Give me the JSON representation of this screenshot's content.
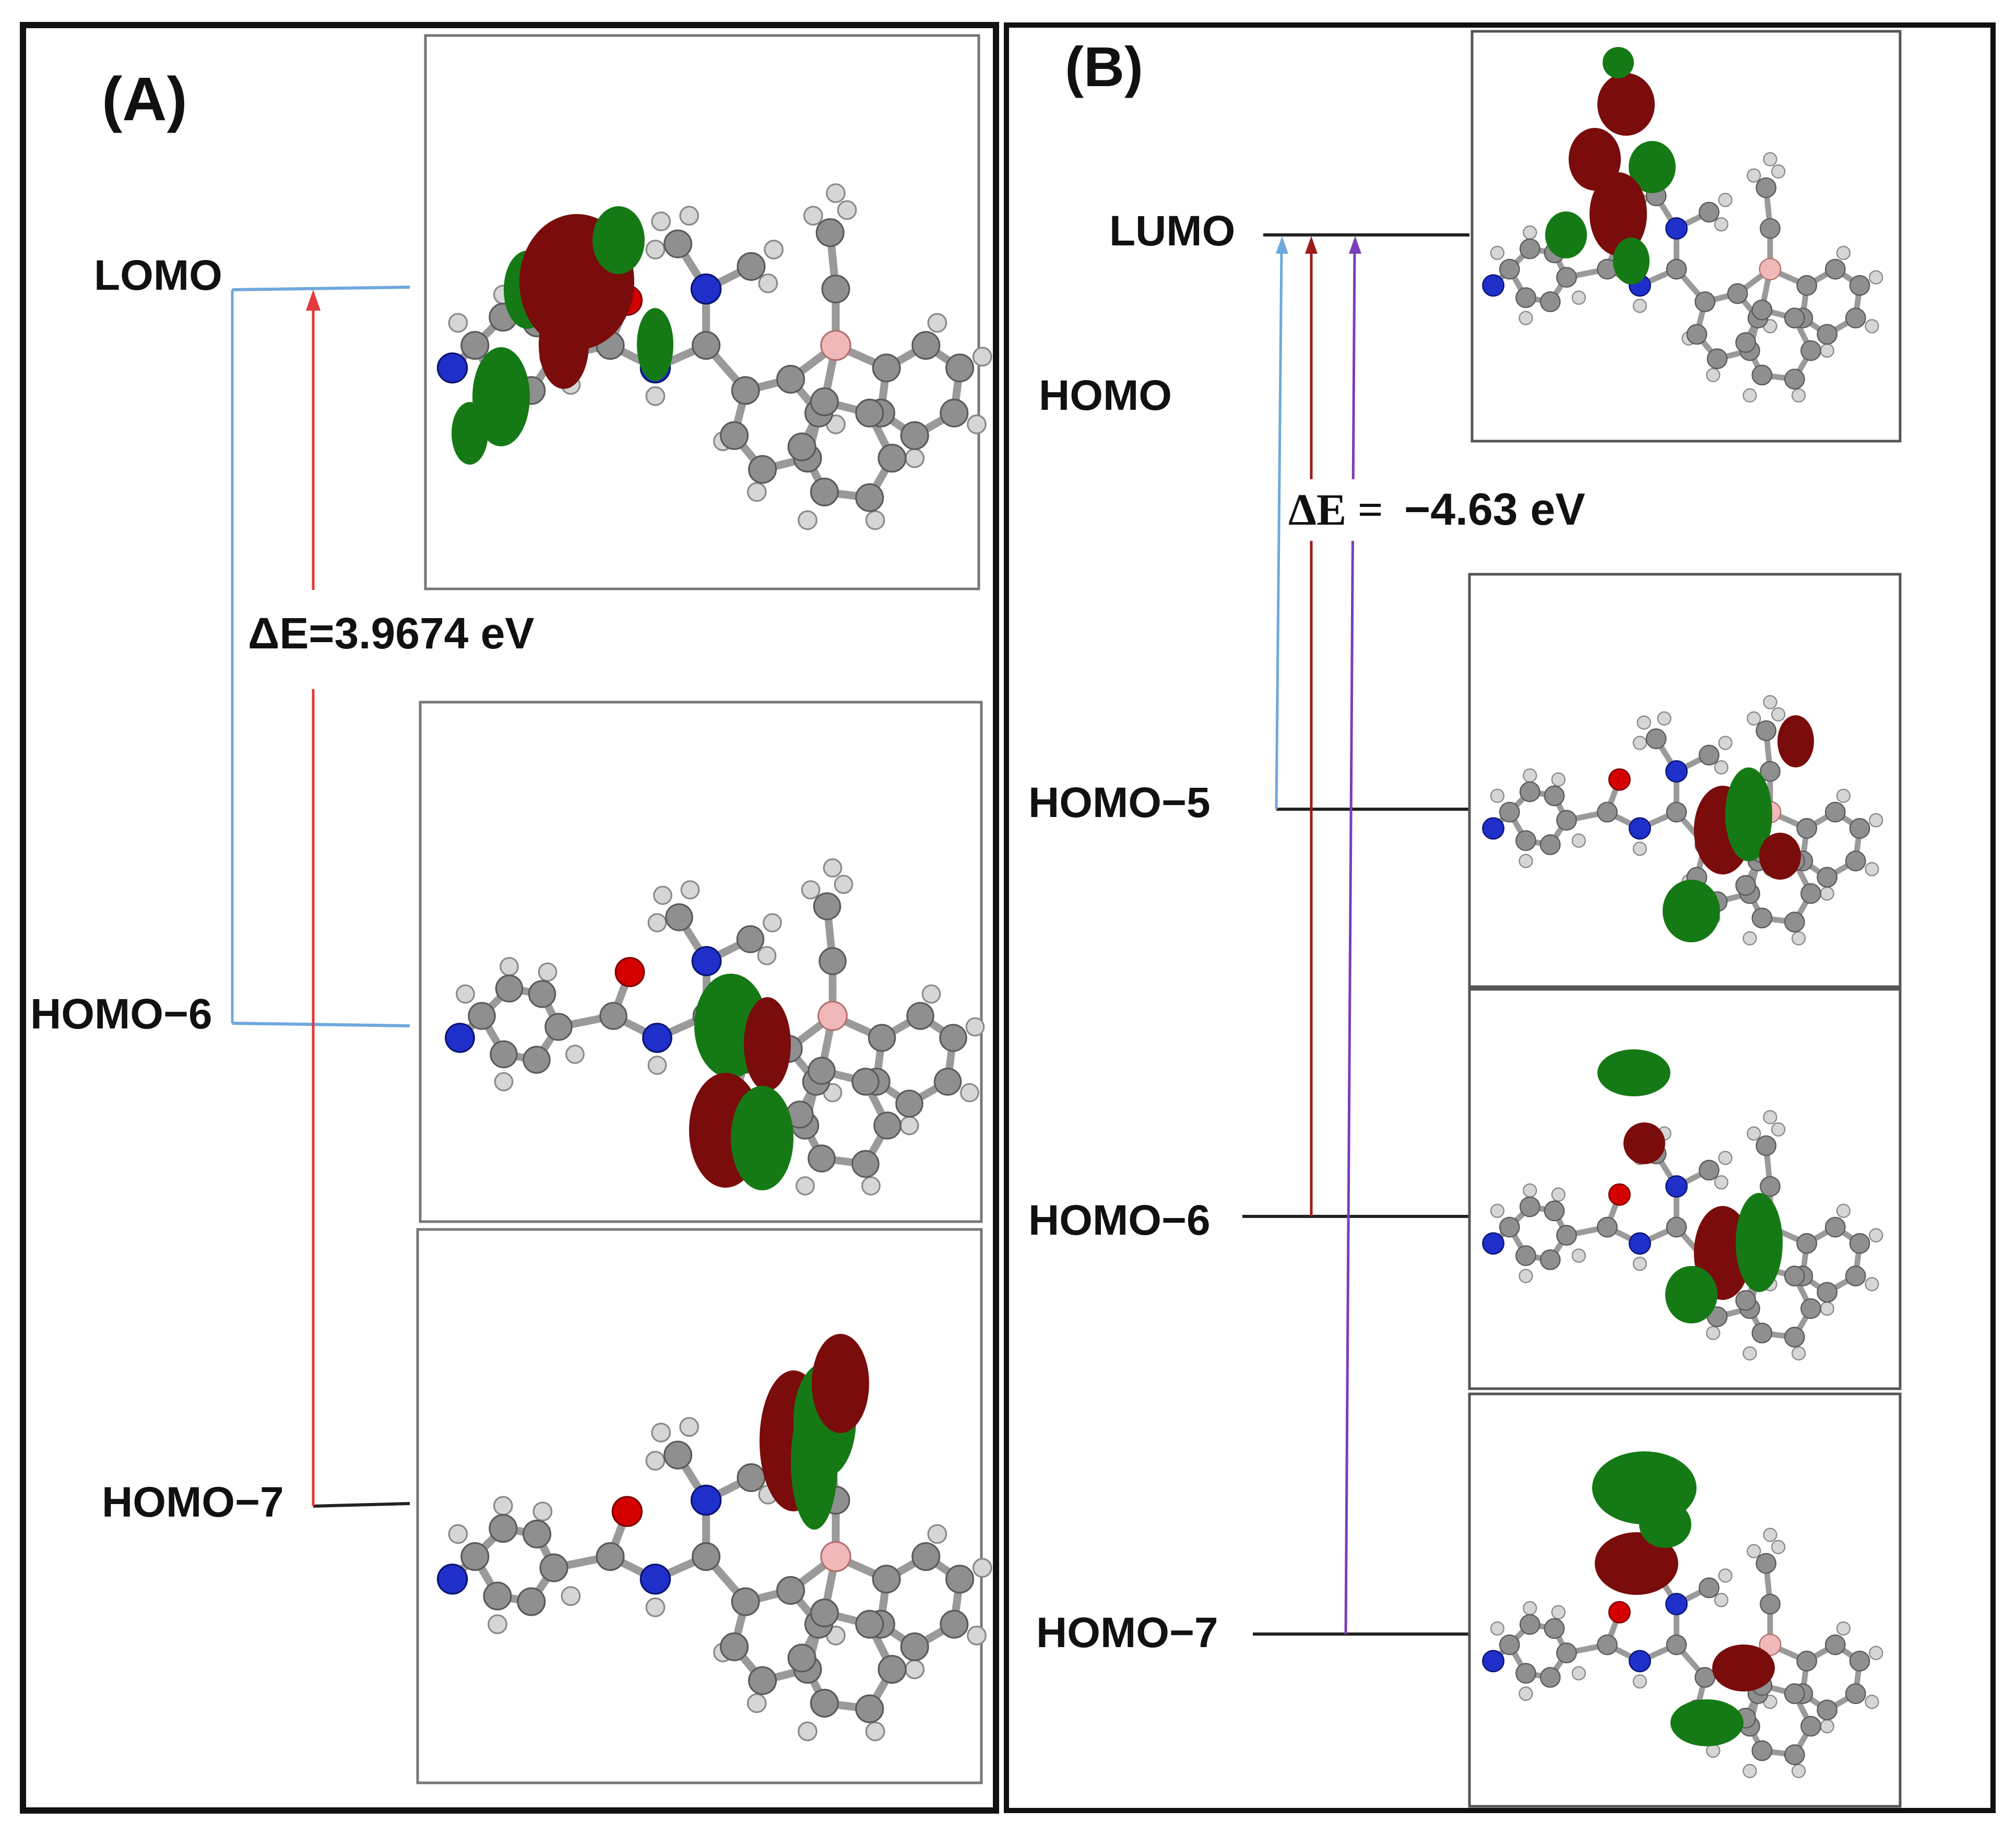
{
  "panelA": {
    "tag": "(A)",
    "levels": {
      "lumo": "LOMO",
      "homo6": "HOMO−6",
      "homo7": "HOMO−7"
    },
    "gap_text": "ΔE=3.9674 eV"
  },
  "panelB": {
    "tag": "(B)",
    "levels": {
      "lumo": "LUMO",
      "homo": "HOMO",
      "homo5": "HOMO−5",
      "homo6": "HOMO−6",
      "homo7": "HOMO−7"
    },
    "gap_symbol": "ΔE =",
    "gap_value": "−4.63 eV"
  },
  "colors": {
    "frame": "#111111",
    "level_line": "#222222",
    "blue": "#6fa8dc",
    "red": "#e23b3b",
    "darkred": "#9b1c1c",
    "purple": "#7a3fb8",
    "orbital_red": "#7a0c0c",
    "orbital_green": "#157a15",
    "atom_c": "#8f8f8f",
    "atom_h": "#d6d6d6",
    "atom_n": "#1f2fc9",
    "atom_o": "#d40000",
    "atom_b": "#f0b8b8"
  }
}
